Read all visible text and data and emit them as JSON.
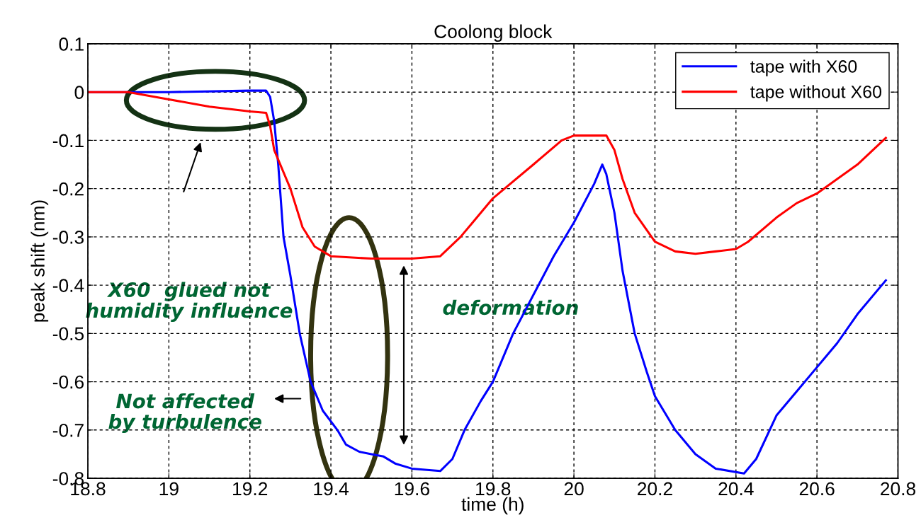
{
  "chart_data": {
    "type": "line",
    "title": "Coolong block",
    "xlabel": "time (h)",
    "ylabel": "peak shift (nm)",
    "xlim": [
      18.8,
      20.8
    ],
    "xticks": [
      18.8,
      19,
      19.2,
      19.4,
      19.6,
      19.8,
      20,
      20.2,
      20.4,
      20.6,
      20.8
    ],
    "ylim": [
      -0.8,
      0.1
    ],
    "yticks": [
      -0.8,
      -0.7,
      -0.6,
      -0.5,
      -0.4,
      -0.3,
      -0.2,
      -0.1,
      0,
      0.1
    ],
    "grid": true,
    "legend": "top right",
    "line_style": "solid",
    "series": [
      {
        "name": "tape with X60",
        "color": "#0000ff",
        "x": [
          18.8,
          19.0,
          19.2,
          19.24,
          19.25,
          19.26,
          19.27,
          19.283,
          19.3,
          19.323,
          19.35,
          19.38,
          19.416,
          19.437,
          19.47,
          19.5,
          19.53,
          19.56,
          19.6,
          19.67,
          19.7,
          19.73,
          19.77,
          19.8,
          19.85,
          19.9,
          19.95,
          20.0,
          20.05,
          20.07,
          20.08,
          20.1,
          20.12,
          20.15,
          20.18,
          20.2,
          20.25,
          20.3,
          20.35,
          20.42,
          20.45,
          20.5,
          20.55,
          20.6,
          20.65,
          20.7,
          20.77
        ],
        "values": [
          0,
          0,
          0.003,
          0.003,
          -0.01,
          -0.06,
          -0.15,
          -0.3,
          -0.38,
          -0.5,
          -0.6,
          -0.66,
          -0.7,
          -0.73,
          -0.745,
          -0.75,
          -0.755,
          -0.77,
          -0.78,
          -0.785,
          -0.76,
          -0.7,
          -0.64,
          -0.6,
          -0.5,
          -0.42,
          -0.34,
          -0.27,
          -0.19,
          -0.15,
          -0.17,
          -0.25,
          -0.37,
          -0.5,
          -0.58,
          -0.63,
          -0.7,
          -0.75,
          -0.78,
          -0.79,
          -0.76,
          -0.67,
          -0.62,
          -0.57,
          -0.52,
          -0.46,
          -0.39
        ]
      },
      {
        "name": "tape without X60",
        "color": "#ff0000",
        "x": [
          18.8,
          18.9,
          19.0,
          19.1,
          19.2,
          19.24,
          19.25,
          19.26,
          19.3,
          19.33,
          19.36,
          19.4,
          19.5,
          19.6,
          19.67,
          19.72,
          19.75,
          19.8,
          19.9,
          19.97,
          20.0,
          20.05,
          20.08,
          20.1,
          20.12,
          20.15,
          20.2,
          20.25,
          20.3,
          20.35,
          20.4,
          20.43,
          20.5,
          20.55,
          20.6,
          20.65,
          20.7,
          20.77
        ],
        "values": [
          0,
          0,
          -0.015,
          -0.03,
          -0.04,
          -0.043,
          -0.07,
          -0.12,
          -0.2,
          -0.28,
          -0.32,
          -0.34,
          -0.345,
          -0.345,
          -0.34,
          -0.3,
          -0.27,
          -0.22,
          -0.15,
          -0.1,
          -0.09,
          -0.09,
          -0.09,
          -0.12,
          -0.18,
          -0.25,
          -0.31,
          -0.33,
          -0.335,
          -0.33,
          -0.325,
          -0.31,
          -0.26,
          -0.23,
          -0.21,
          -0.18,
          -0.15,
          -0.095
        ]
      }
    ],
    "annotations": [
      "X60  glued not\nhumidity influence",
      "deformation",
      "Not affected\nby turbulence"
    ]
  }
}
